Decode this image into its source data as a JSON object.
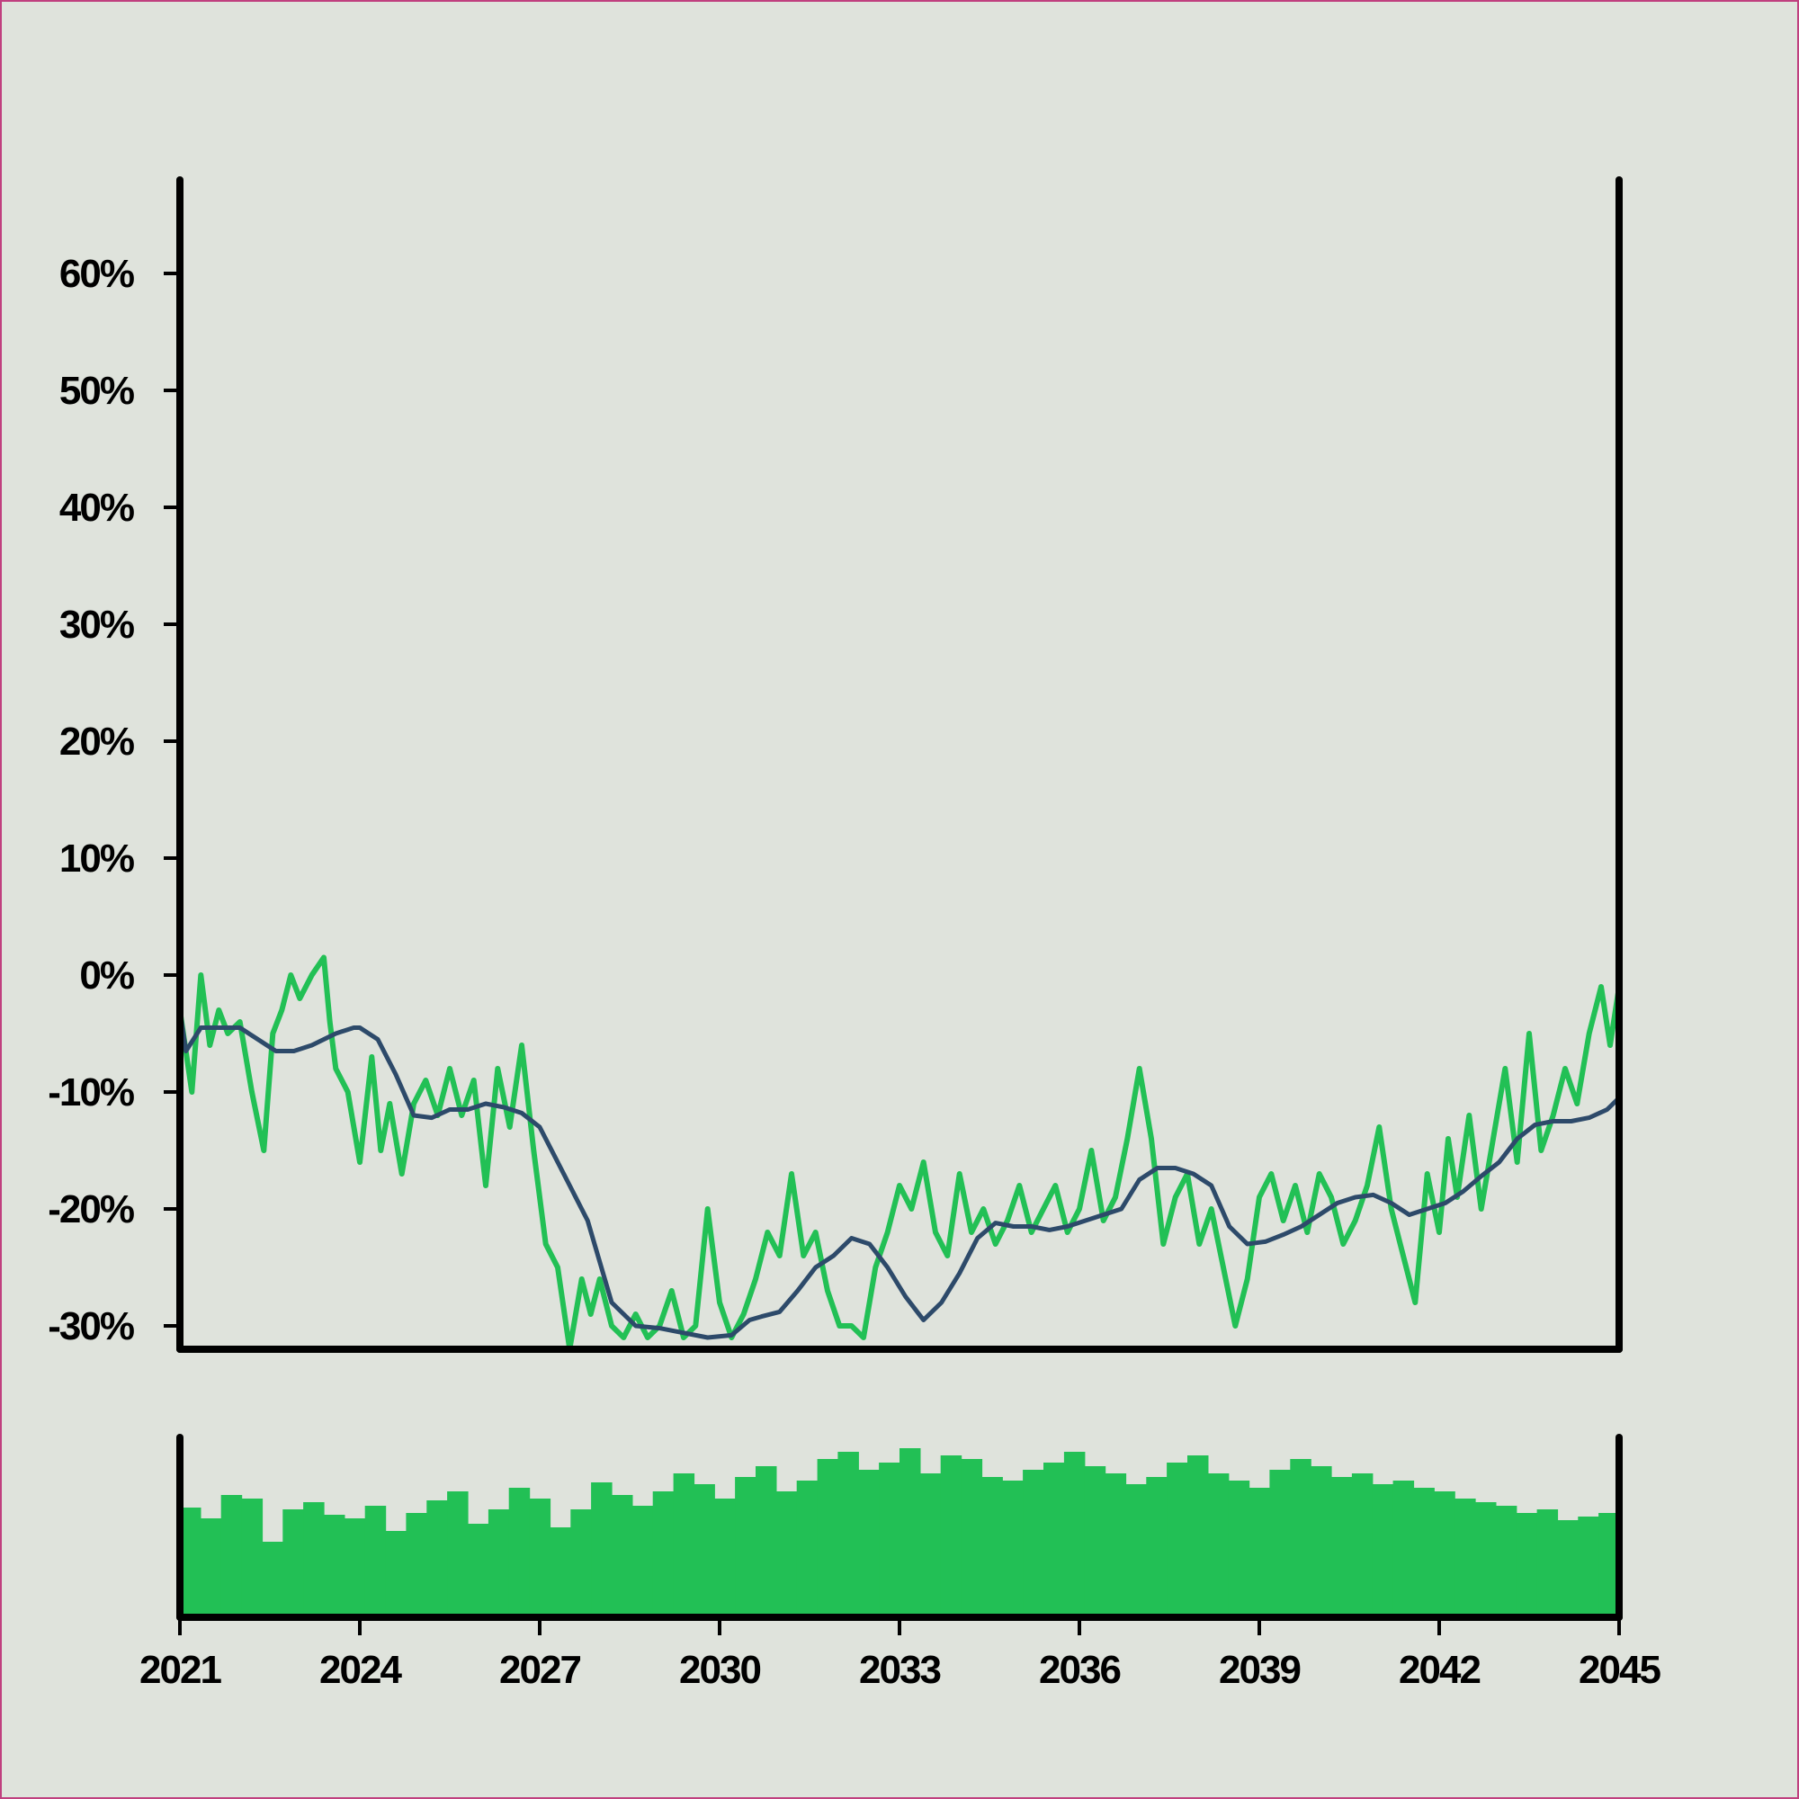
{
  "chart_data": [
    {
      "type": "line",
      "title": "",
      "xlabel": "",
      "ylabel": "",
      "x_range": [
        2021,
        2045
      ],
      "ylim": [
        -32,
        68
      ],
      "y_ticks": [
        -30,
        -20,
        -10,
        0,
        10,
        20,
        30,
        40,
        50,
        60
      ],
      "y_tick_labels": [
        "-30%",
        "-20%",
        "-10%",
        "0%",
        "10%",
        "20%",
        "30%",
        "40%",
        "50%",
        "60%"
      ],
      "grid": false,
      "legend": "none",
      "series": [
        {
          "color": "#22c055",
          "style": "raw",
          "x": [
            2021.0,
            2021.2,
            2021.35,
            2021.5,
            2021.65,
            2021.8,
            2022.0,
            2022.2,
            2022.4,
            2022.55,
            2022.7,
            2022.85,
            2023.0,
            2023.2,
            2023.4,
            2023.5,
            2023.6,
            2023.8,
            2024.0,
            2024.2,
            2024.35,
            2024.5,
            2024.7,
            2024.9,
            2025.1,
            2025.3,
            2025.5,
            2025.7,
            2025.9,
            2026.1,
            2026.3,
            2026.5,
            2026.7,
            2026.9,
            2027.1,
            2027.3,
            2027.5,
            2027.7,
            2027.85,
            2028.0,
            2028.2,
            2028.4,
            2028.6,
            2028.8,
            2029.0,
            2029.2,
            2029.4,
            2029.6,
            2029.8,
            2030.0,
            2030.2,
            2030.4,
            2030.6,
            2030.8,
            2031.0,
            2031.2,
            2031.4,
            2031.6,
            2031.8,
            2032.0,
            2032.2,
            2032.4,
            2032.6,
            2032.8,
            2033.0,
            2033.2,
            2033.4,
            2033.6,
            2033.8,
            2034.0,
            2034.2,
            2034.4,
            2034.6,
            2034.8,
            2035.0,
            2035.2,
            2035.4,
            2035.6,
            2035.8,
            2036.0,
            2036.2,
            2036.4,
            2036.6,
            2036.8,
            2037.0,
            2037.2,
            2037.4,
            2037.6,
            2037.8,
            2038.0,
            2038.2,
            2038.4,
            2038.6,
            2038.8,
            2039.0,
            2039.2,
            2039.4,
            2039.6,
            2039.8,
            2040.0,
            2040.2,
            2040.4,
            2040.6,
            2040.8,
            2041.0,
            2041.2,
            2041.4,
            2041.6,
            2041.8,
            2042.0,
            2042.15,
            2042.3,
            2042.5,
            2042.7,
            2042.9,
            2043.1,
            2043.3,
            2043.5,
            2043.7,
            2043.9,
            2044.1,
            2044.3,
            2044.5,
            2044.7,
            2044.85,
            2045.0
          ],
          "y": [
            -3,
            -10,
            0,
            -6,
            -3,
            -5,
            -4,
            -10,
            -15,
            -5,
            -3,
            0,
            -2,
            0,
            1.5,
            -4,
            -8,
            -10,
            -16,
            -7,
            -15,
            -11,
            -17,
            -11,
            -9,
            -12,
            -8,
            -12,
            -9,
            -18,
            -8,
            -13,
            -6,
            -15,
            -23,
            -25,
            -32,
            -26,
            -29,
            -26,
            -30,
            -31,
            -29,
            -31,
            -30,
            -27,
            -31,
            -30,
            -20,
            -28,
            -31,
            -29,
            -26,
            -22,
            -24,
            -17,
            -24,
            -22,
            -27,
            -30,
            -30,
            -31,
            -25,
            -22,
            -18,
            -20,
            -16,
            -22,
            -24,
            -17,
            -22,
            -20,
            -23,
            -21,
            -18,
            -22,
            -20,
            -18,
            -22,
            -20,
            -15,
            -21,
            -19,
            -14,
            -8,
            -14,
            -23,
            -19,
            -17,
            -23,
            -20,
            -25,
            -30,
            -26,
            -19,
            -17,
            -21,
            -18,
            -22,
            -17,
            -19,
            -23,
            -21,
            -18,
            -13,
            -20,
            -24,
            -28,
            -17,
            -22,
            -14,
            -19,
            -12,
            -20,
            -14,
            -8,
            -16,
            -5,
            -15,
            -12,
            -8,
            -11,
            -5,
            -1,
            -6,
            -1
          ],
          "y_detail": [
            -3,
            -10,
            0,
            -6,
            -3,
            -5,
            -4,
            -10,
            -15,
            -5,
            -3,
            0,
            -2,
            0,
            1.5,
            -4,
            -8,
            -10,
            -16,
            -7,
            -15,
            -11,
            -17,
            -11,
            -9,
            -12,
            -8,
            -12,
            -9,
            -18,
            -8,
            -13,
            -6,
            -15,
            -23,
            -25,
            -32,
            -26,
            -29,
            -26,
            -30,
            -31,
            -29,
            -31,
            -30,
            -27,
            -31,
            -30,
            -20,
            -28,
            -31,
            -29,
            -26,
            -22,
            -24,
            -17,
            -24,
            -22,
            -27,
            -30,
            -30,
            -31,
            -25,
            -22,
            -18,
            -20,
            -16,
            -22,
            -24,
            -17,
            -22,
            -20,
            -23,
            -21,
            -18,
            -22,
            -20,
            -18,
            -22,
            -20,
            -15,
            -21,
            -19,
            -14,
            -8,
            -14,
            -23,
            -19,
            -17,
            -23,
            -20,
            -25,
            -30,
            -26,
            -19,
            -17,
            -21,
            -18,
            -22,
            -17,
            -19,
            -23,
            -21,
            -18,
            -13,
            -20,
            -24,
            -28,
            -17,
            -22,
            -14,
            -19,
            -12,
            -20,
            -14,
            -8,
            -16,
            -5,
            -15,
            -12,
            -8,
            -11,
            -5,
            -1,
            -6,
            -1
          ]
        },
        {
          "color": "#2d4a6a",
          "style": "smoothed",
          "x": [
            2021.0,
            2021.1,
            2021.35,
            2021.7,
            2022.0,
            2022.3,
            2022.6,
            2022.9,
            2023.2,
            2023.6,
            2023.9,
            2024.0,
            2024.3,
            2024.6,
            2024.9,
            2025.2,
            2025.5,
            2025.8,
            2026.1,
            2026.4,
            2026.7,
            2027.0,
            2027.4,
            2027.8,
            2028.2,
            2028.6,
            2029.0,
            2029.4,
            2029.8,
            2030.2,
            2030.5,
            2030.7,
            2031.0,
            2031.3,
            2031.6,
            2031.9,
            2032.2,
            2032.5,
            2032.8,
            2033.1,
            2033.4,
            2033.7,
            2034.0,
            2034.3,
            2034.6,
            2034.9,
            2035.2,
            2035.5,
            2035.8,
            2036.1,
            2036.4,
            2036.7,
            2037.0,
            2037.3,
            2037.6,
            2037.9,
            2038.2,
            2038.5,
            2038.8,
            2039.1,
            2039.4,
            2039.7,
            2040.0,
            2040.3,
            2040.6,
            2040.9,
            2041.2,
            2041.5,
            2041.8,
            2042.1,
            2042.4,
            2042.7,
            2043.0,
            2043.3,
            2043.6,
            2043.9,
            2044.2,
            2044.5,
            2044.8,
            2045.0
          ],
          "y": [
            -3,
            -6.5,
            -4.5,
            -4.5,
            -4.5,
            -5.5,
            -6.5,
            -6.5,
            -6,
            -5,
            -4.5,
            -4.5,
            -5.5,
            -8.5,
            -12,
            -12.2,
            -11.5,
            -11.5,
            -11,
            -11.3,
            -11.8,
            -13,
            -17,
            -21,
            -28,
            -30,
            -30.2,
            -30.6,
            -31,
            -30.8,
            -29.5,
            -29.2,
            -28.8,
            -27,
            -25,
            -24,
            -22.5,
            -23,
            -25,
            -27.5,
            -29.5,
            -28,
            -25.5,
            -22.5,
            -21.2,
            -21.5,
            -21.5,
            -21.8,
            -21.5,
            -21,
            -20.5,
            -20,
            -17.5,
            -16.5,
            -16.5,
            -17,
            -18,
            -21.5,
            -23,
            -22.8,
            -22.2,
            -21.5,
            -20.5,
            -19.5,
            -19,
            -18.8,
            -19.5,
            -20.5,
            -20,
            -19.5,
            -18.5,
            -17.2,
            -16,
            -14,
            -12.8,
            -12.5,
            -12.5,
            -12.2,
            -11.5,
            -10.5
          ]
        }
      ]
    },
    {
      "type": "bar",
      "title": "",
      "x_range": [
        2021,
        2045
      ],
      "x_ticks": [
        2021,
        2024,
        2027,
        2030,
        2033,
        2036,
        2039,
        2042,
        2045
      ],
      "x_tick_labels": [
        "2021",
        "2024",
        "2027",
        "2030",
        "2033",
        "2036",
        "2039",
        "2042",
        "2045"
      ],
      "y_axis_labels": "none",
      "color": "#22c055",
      "values_relative": [
        0.61,
        0.55,
        0.68,
        0.66,
        0.42,
        0.6,
        0.64,
        0.57,
        0.55,
        0.62,
        0.48,
        0.58,
        0.65,
        0.7,
        0.52,
        0.6,
        0.72,
        0.66,
        0.5,
        0.6,
        0.75,
        0.68,
        0.62,
        0.7,
        0.8,
        0.74,
        0.66,
        0.78,
        0.84,
        0.7,
        0.76,
        0.88,
        0.92,
        0.82,
        0.86,
        0.94,
        0.8,
        0.9,
        0.88,
        0.78,
        0.76,
        0.82,
        0.86,
        0.92,
        0.84,
        0.8,
        0.74,
        0.78,
        0.86,
        0.9,
        0.8,
        0.76,
        0.72,
        0.82,
        0.88,
        0.84,
        0.78,
        0.8,
        0.74,
        0.76,
        0.72,
        0.7,
        0.66,
        0.64,
        0.62,
        0.58,
        0.6,
        0.54,
        0.56,
        0.58
      ]
    }
  ]
}
